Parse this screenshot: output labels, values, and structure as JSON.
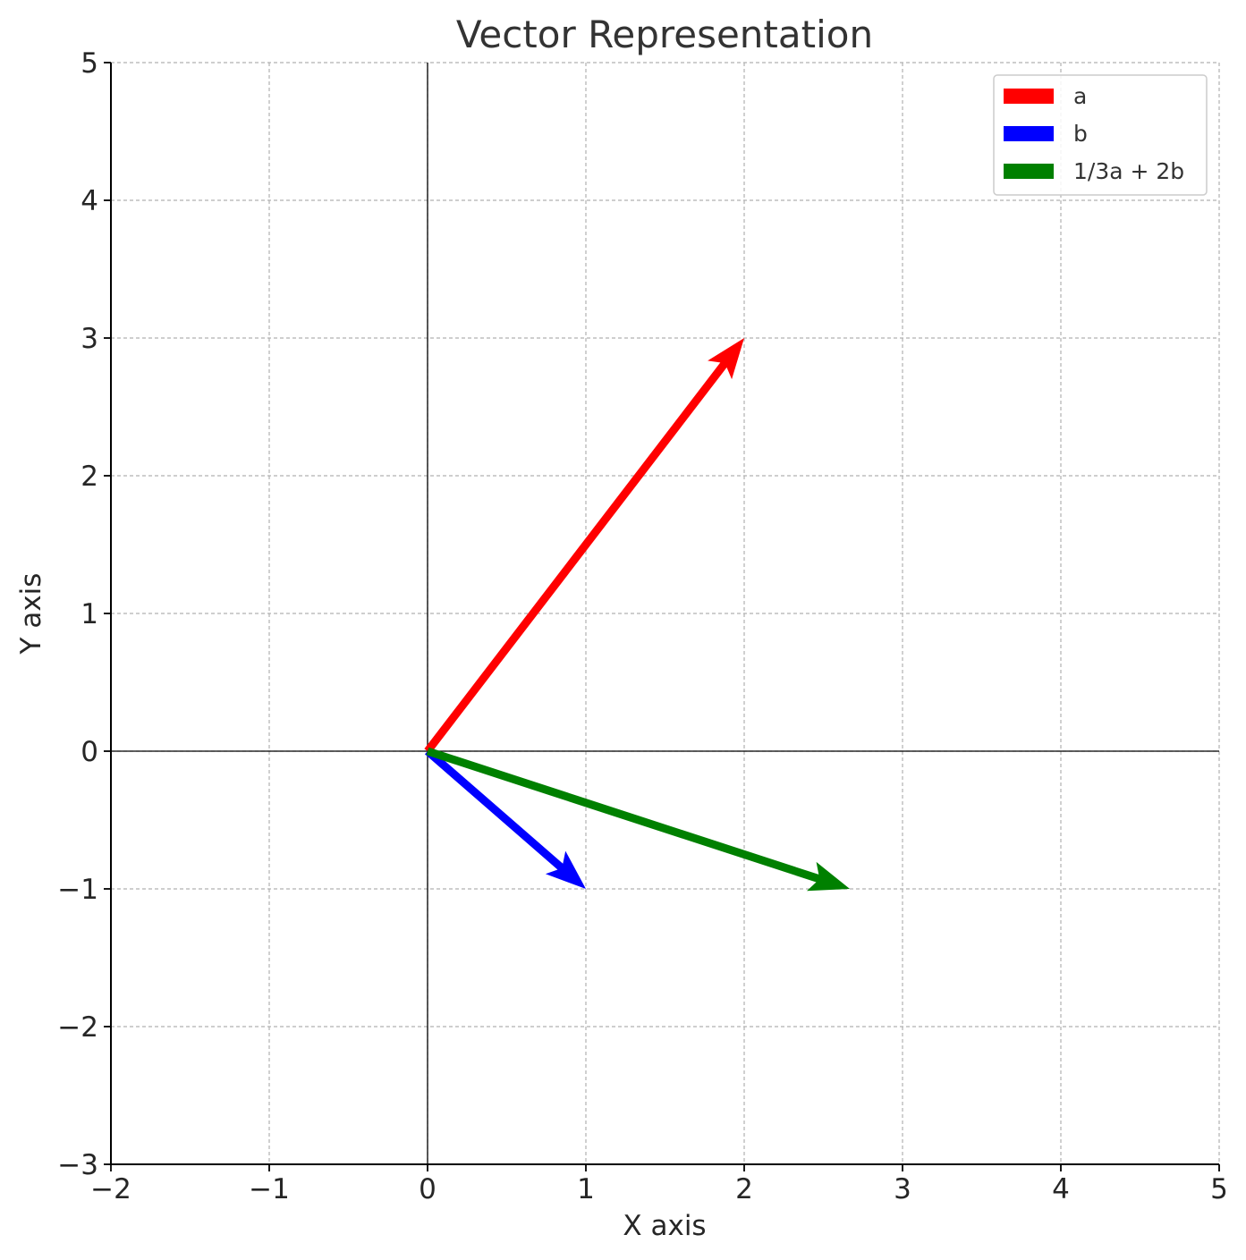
{
  "chart_data": {
    "type": "vector",
    "title": "Vector Representation",
    "xlabel": "X axis",
    "ylabel": "Y axis",
    "xlim": [
      -2,
      5
    ],
    "ylim": [
      -3,
      5
    ],
    "xticks": [
      -2,
      -1,
      0,
      1,
      2,
      3,
      4,
      5
    ],
    "yticks": [
      -3,
      -2,
      -1,
      0,
      1,
      2,
      3,
      4,
      5
    ],
    "xtick_labels": [
      "−2",
      "−1",
      "0",
      "1",
      "2",
      "3",
      "4",
      "5"
    ],
    "ytick_labels": [
      "−3",
      "−2",
      "−1",
      "0",
      "1",
      "2",
      "3",
      "4",
      "5"
    ],
    "grid": true,
    "legend_position": "top-right",
    "series": [
      {
        "name": "a",
        "color": "#ff0000",
        "origin": [
          0,
          0
        ],
        "vector": [
          2,
          3
        ]
      },
      {
        "name": "b",
        "color": "#0000ff",
        "origin": [
          0,
          0
        ],
        "vector": [
          1,
          -1
        ]
      },
      {
        "name": "1/3a + 2b",
        "color": "#008000",
        "origin": [
          0,
          0
        ],
        "vector": [
          2.667,
          -1
        ]
      }
    ]
  }
}
